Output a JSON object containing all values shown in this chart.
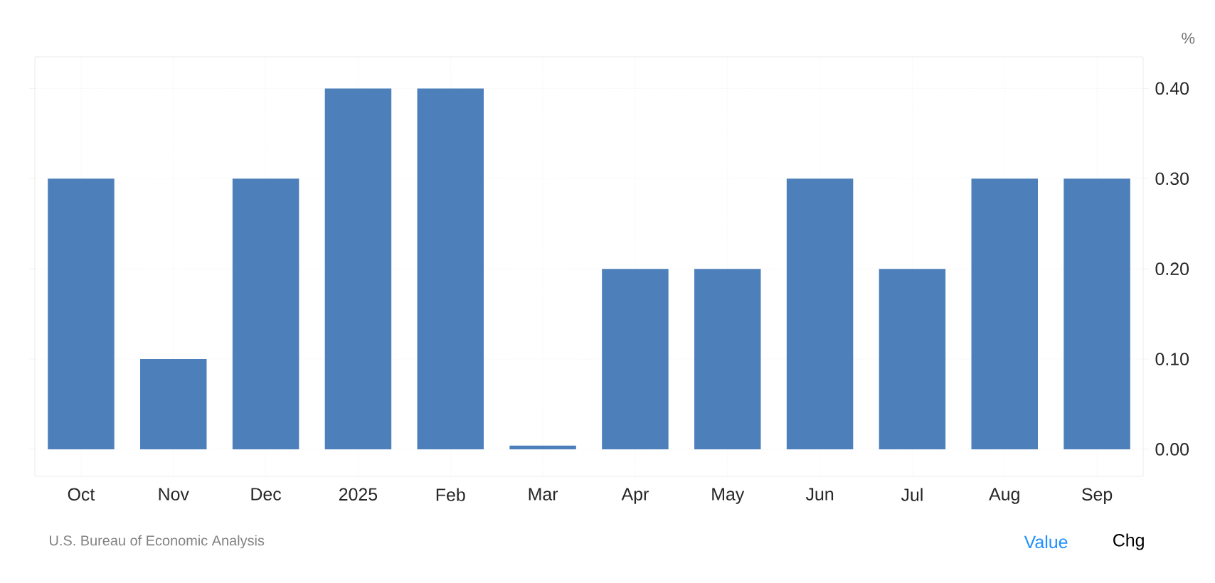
{
  "chart_data": {
    "type": "bar",
    "ylabel": "%",
    "categories": [
      "Oct",
      "Nov",
      "Dec",
      "2025",
      "Feb",
      "Mar",
      "Apr",
      "May",
      "Jun",
      "Jul",
      "Aug",
      "Sep"
    ],
    "values": [
      0.3,
      0.1,
      0.3,
      0.4,
      0.4,
      0.004,
      0.2,
      0.2,
      0.3,
      0.2,
      0.3,
      0.3
    ],
    "color": "#4d80ba",
    "ylim": [
      -0.03,
      0.435
    ],
    "yticks": [
      {
        "value": 0,
        "label": "0.00"
      },
      {
        "value": 0.1,
        "label": "0.10"
      },
      {
        "value": 0.2,
        "label": "0.20"
      },
      {
        "value": 0.3,
        "label": "0.30"
      },
      {
        "value": 0.4,
        "label": "0.40"
      }
    ],
    "grid": true,
    "annotations": [
      "U.S. Bureau of Economic Analysis",
      "Value",
      "Chg"
    ]
  }
}
